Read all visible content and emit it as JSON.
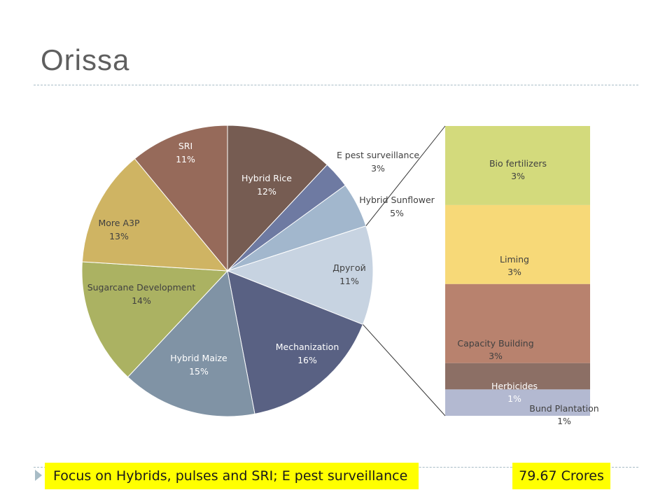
{
  "slide": {
    "title": "Orissa",
    "focus_text": "Focus on Hybrids, pulses and SRI; E pest surveillance",
    "amount_text": "79.67 Crores",
    "highlight_color": "#ffff00"
  },
  "chart_data": {
    "type": "pie",
    "subtype": "bar-of-pie",
    "title": "",
    "slices": [
      {
        "name": "Hybrid Rice",
        "value": 12,
        "label": "12%",
        "color": "#765c52",
        "label_color": "light"
      },
      {
        "name": "E pest surveillance",
        "value": 3,
        "label": "3%",
        "color": "#6e7aa2",
        "label_color": "dark"
      },
      {
        "name": "Hybrid Sunflower",
        "value": 5,
        "label": "5%",
        "color": "#a2b7cd",
        "label_color": "dark"
      },
      {
        "name": "Другой",
        "value": 11,
        "label": "11%",
        "color": "#c7d3e1",
        "label_color": "dark"
      },
      {
        "name": "Mechanization",
        "value": 16,
        "label": "16%",
        "color": "#596183",
        "label_color": "light"
      },
      {
        "name": "Hybrid Maize",
        "value": 15,
        "label": "15%",
        "color": "#8093a5",
        "label_color": "light"
      },
      {
        "name": "Sugarcane Development",
        "value": 14,
        "label": "14%",
        "color": "#abb262",
        "label_color": "dark"
      },
      {
        "name": "More A3P",
        "value": 13,
        "label": "13%",
        "color": "#cfb463",
        "label_color": "dark"
      },
      {
        "name": "SRI",
        "value": 11,
        "label": "11%",
        "color": "#966a5a",
        "label_color": "light"
      }
    ],
    "other_breakdown": [
      {
        "name": "Bio fertilizers",
        "value": 3,
        "label": "3%",
        "color": "#d3da7c"
      },
      {
        "name": "Liming",
        "value": 3,
        "label": "3%",
        "color": "#f7d978"
      },
      {
        "name": "Capacity Building",
        "value": 3,
        "label": "3%",
        "color": "#b8826e"
      },
      {
        "name": "Herbicides",
        "value": 1,
        "label": "1%",
        "color": "#8c6f65"
      },
      {
        "name": "Bund Plantation",
        "value": 1,
        "label": "1%",
        "color": "#b3b9d1"
      }
    ],
    "legend": "none"
  }
}
